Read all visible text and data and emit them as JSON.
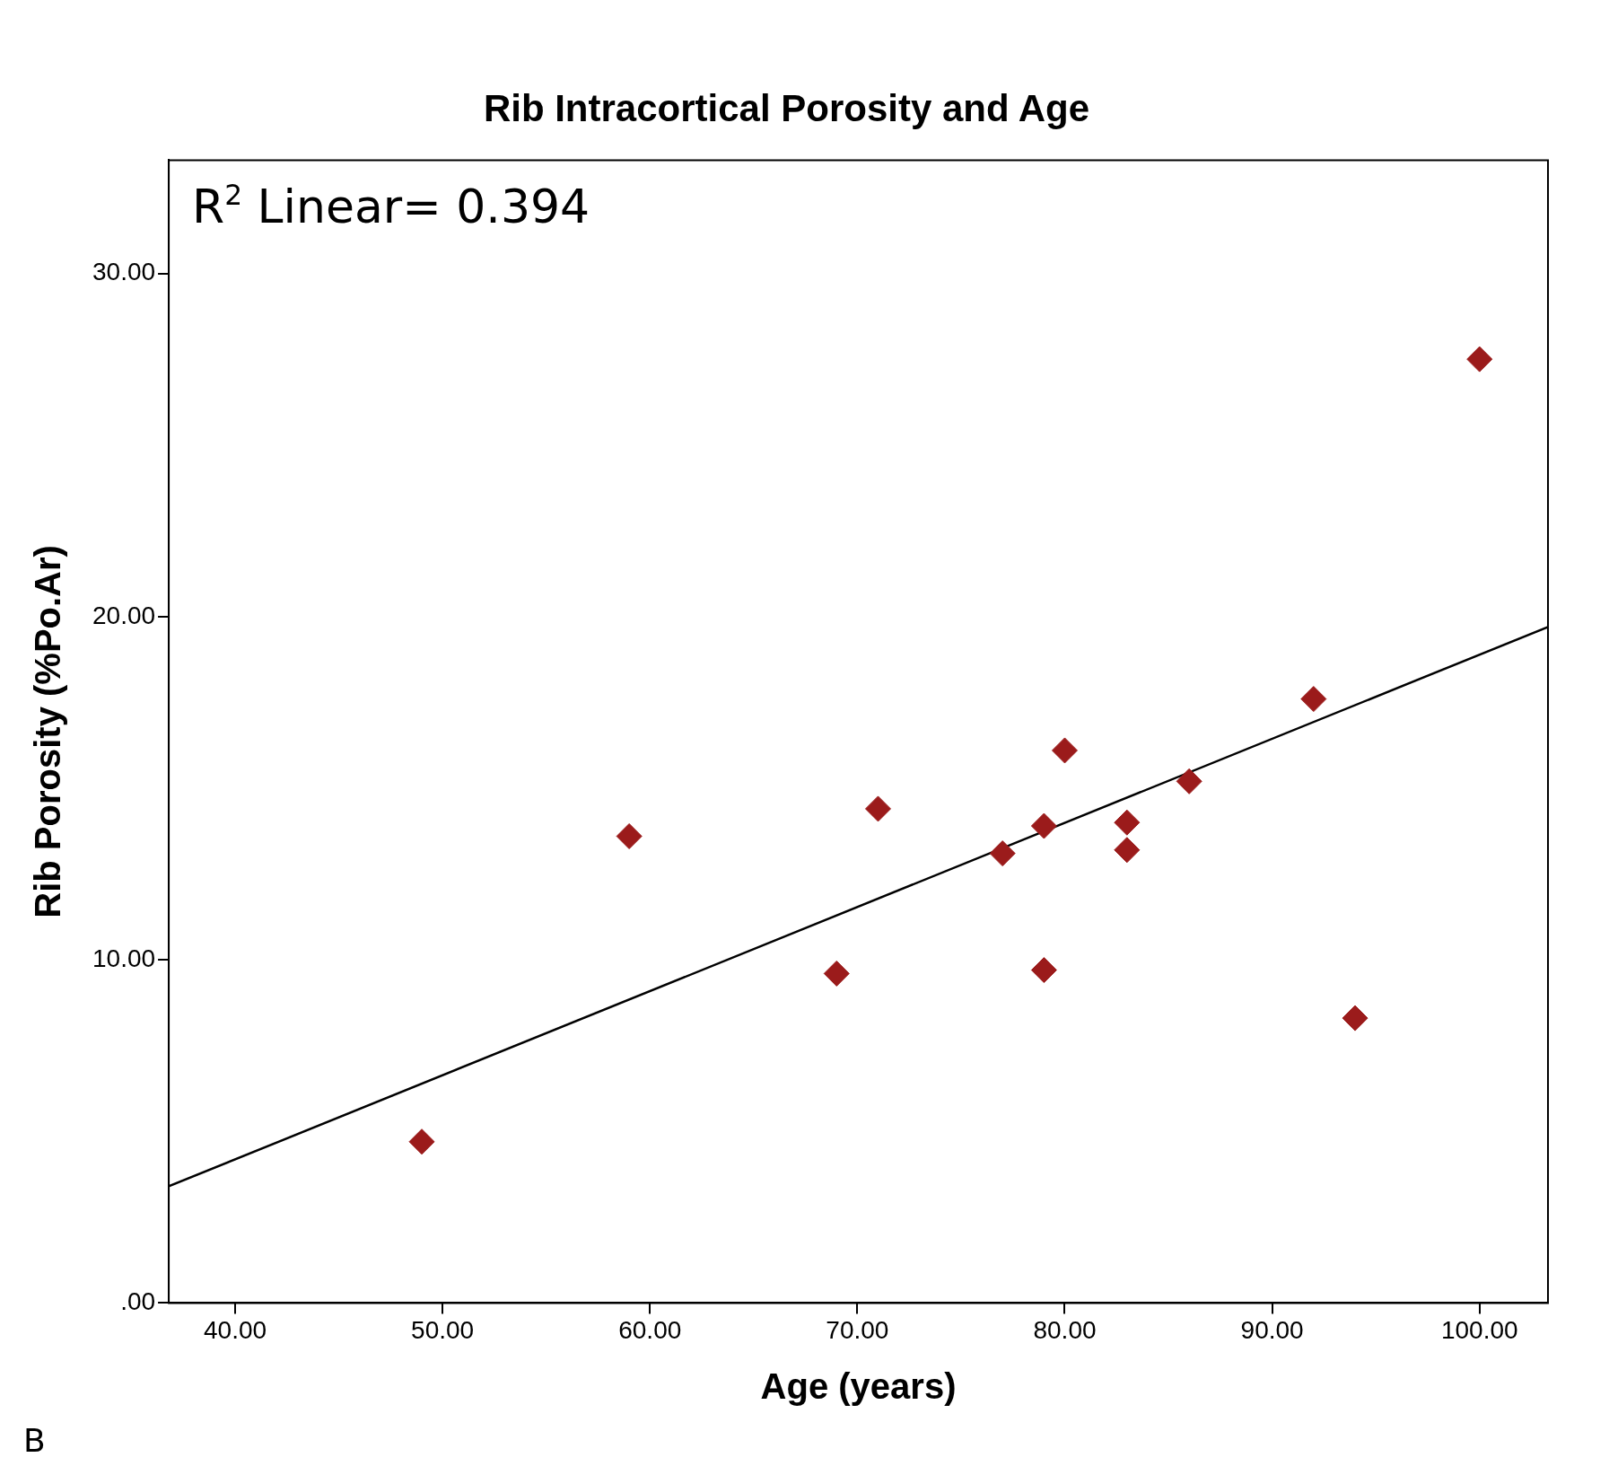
{
  "chart_data": {
    "type": "scatter",
    "title": "Rib Intracortical Porosity and Age",
    "xlabel": "Age (years)",
    "ylabel": "Rib Porosity (%Po.Ar)",
    "annotations": [
      "R$^{2}$ Linear= 0.394",
      "B"
    ],
    "xlim": [
      36.8,
      103.3
    ],
    "xticks": [
      {
        "value": 40,
        "label": "40.00"
      },
      {
        "value": 50,
        "label": "50.00"
      },
      {
        "value": 60,
        "label": "60.00"
      },
      {
        "value": 70,
        "label": "70.00"
      },
      {
        "value": 80,
        "label": "80.00"
      },
      {
        "value": 90,
        "label": "90.00"
      },
      {
        "value": 100,
        "label": "100.00"
      }
    ],
    "ylim": [
      0,
      33.3
    ],
    "yticks": [
      {
        "value": 0,
        "label": ".00"
      },
      {
        "value": 10,
        "label": "10.00"
      },
      {
        "value": 20,
        "label": "20.00"
      },
      {
        "value": 30,
        "label": "30.00"
      }
    ],
    "grid": false,
    "legend": false,
    "marker": "diamond",
    "series": [
      {
        "type": "scatter",
        "color": "#9b1b1b",
        "x": [
          49,
          59,
          69,
          71,
          77,
          79,
          79,
          80,
          83,
          83,
          86,
          92,
          94,
          100
        ],
        "values": [
          4.7,
          13.6,
          9.6,
          14.4,
          13.1,
          13.9,
          9.7,
          16.1,
          14.0,
          13.2,
          15.2,
          17.6,
          8.3,
          27.5
        ]
      },
      {
        "type": "line",
        "color": "#000000",
        "x": [
          36.8,
          103.3
        ],
        "values": [
          3.4,
          19.7
        ],
        "marker": "none"
      }
    ]
  }
}
